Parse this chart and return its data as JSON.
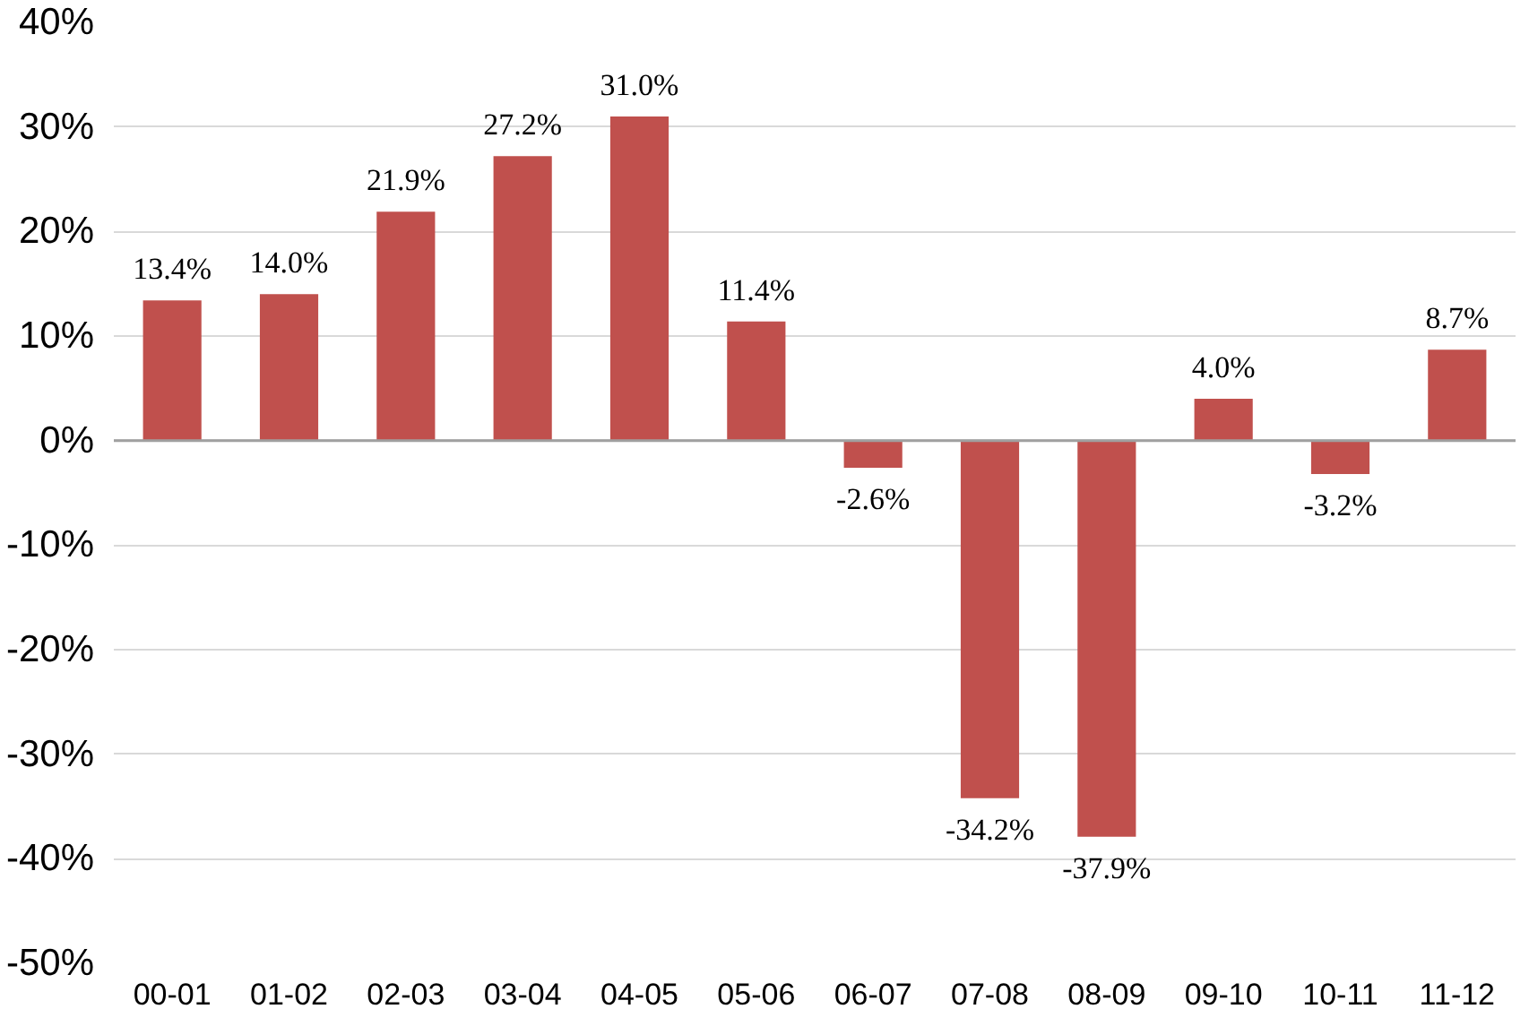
{
  "chart_data": {
    "type": "bar",
    "categories": [
      "00-01",
      "01-02",
      "02-03",
      "03-04",
      "04-05",
      "05-06",
      "06-07",
      "07-08",
      "08-09",
      "09-10",
      "10-11",
      "11-12"
    ],
    "values": [
      13.4,
      14.0,
      21.9,
      27.2,
      31.0,
      11.4,
      -2.6,
      -34.2,
      -37.9,
      4.0,
      -3.2,
      8.7
    ],
    "value_labels": [
      "13.4%",
      "14.0%",
      "21.9%",
      "27.2%",
      "31.0%",
      "11.4%",
      "-2.6%",
      "-34.2%",
      "-37.9%",
      "4.0%",
      "-3.2%",
      "8.7%"
    ],
    "color": "#c0504d",
    "ylim": [
      -50,
      40
    ],
    "yticks": [
      {
        "value": -50,
        "label": "-50%"
      },
      {
        "value": -40,
        "label": "-40%"
      },
      {
        "value": -30,
        "label": "-30%"
      },
      {
        "value": -20,
        "label": "-20%"
      },
      {
        "value": -10,
        "label": "-10%"
      },
      {
        "value": 0,
        "label": "0%"
      },
      {
        "value": 10,
        "label": "10%"
      },
      {
        "value": 20,
        "label": "20%"
      },
      {
        "value": 30,
        "label": "30%"
      },
      {
        "value": 40,
        "label": "40%"
      }
    ],
    "grid": "y"
  }
}
